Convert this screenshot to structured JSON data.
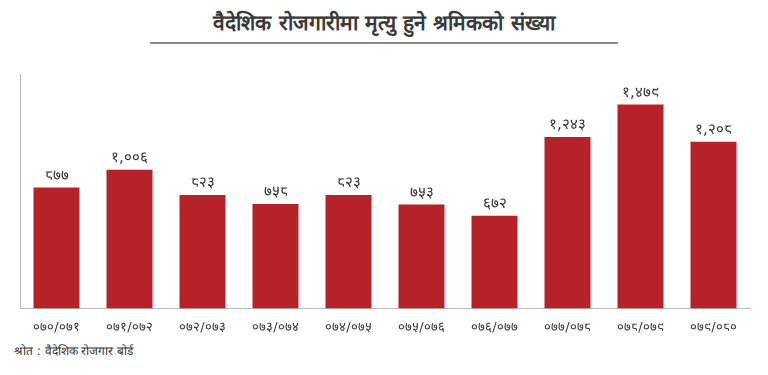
{
  "chart_data": {
    "type": "bar",
    "title": "वैदेशिक रोजगारीमा मृत्यु हुने श्रमिकको संख्या",
    "source": "श्रोत : वैदेशिक रोजगार बोर्ड",
    "categories": [
      "०७०/०७१",
      "०७१/०७२",
      "०७२/०७३",
      "०७३/०७४",
      "०७४/०७५",
      "०७५/०७६",
      "०७६/०७७",
      "०७७/०७८",
      "०७८/०७९",
      "०७९/०८०"
    ],
    "values": [
      877,
      1006,
      823,
      758,
      823,
      753,
      672,
      1243,
      1479,
      1208
    ],
    "value_labels": [
      "८७७",
      "१,००६",
      "८२३",
      "७५८",
      "८२३",
      "७५३",
      "६७२",
      "१,२४३",
      "१,४७९",
      "१,२०८"
    ],
    "color": "#b5222a",
    "ylim": [
      0,
      1700
    ],
    "grid": false,
    "data_labels": true,
    "tick_labels": "x"
  }
}
